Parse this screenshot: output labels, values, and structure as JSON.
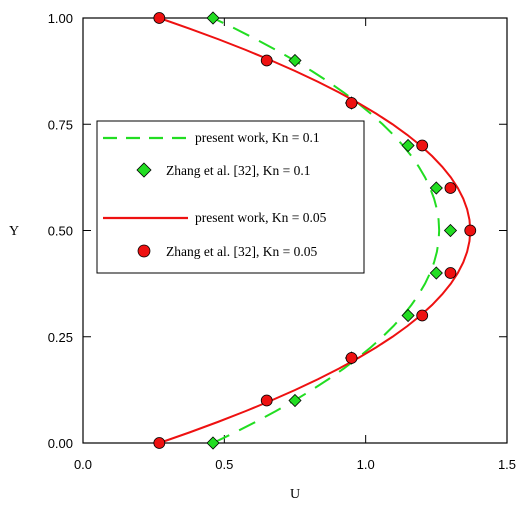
{
  "chart_data": {
    "type": "line",
    "xlabel": "U",
    "ylabel": "Y",
    "xlim": [
      0,
      1.5
    ],
    "ylim": [
      0,
      1
    ],
    "x_ticks": [
      0,
      0.5,
      1.0,
      1.5
    ],
    "x_tick_labels": [
      "0.0",
      "0.5",
      "1.0",
      "1.5"
    ],
    "y_ticks": [
      0,
      0.25,
      0.5,
      0.75,
      1.0
    ],
    "y_tick_labels": [
      "0.00",
      "0.25",
      "0.50",
      "0.75",
      "1.00"
    ],
    "grid": false,
    "legend_position": "left",
    "series": [
      {
        "name": "present work, Kn = 0.1",
        "kind": "line",
        "style": "dashed",
        "color": "#22dd22",
        "curve": {
          "slip_velocity": 0.46,
          "center_velocity": 1.26,
          "points": 41
        }
      },
      {
        "name": "Zhang et al. [32], Kn = 0.1",
        "kind": "marker",
        "marker": "diamond",
        "color": "#22dd22",
        "points": [
          {
            "x": 0.46,
            "y": 0.0
          },
          {
            "x": 0.75,
            "y": 0.1
          },
          {
            "x": 0.95,
            "y": 0.2
          },
          {
            "x": 1.15,
            "y": 0.3
          },
          {
            "x": 1.25,
            "y": 0.4
          },
          {
            "x": 1.3,
            "y": 0.5
          },
          {
            "x": 1.25,
            "y": 0.6
          },
          {
            "x": 1.15,
            "y": 0.7
          },
          {
            "x": 0.95,
            "y": 0.8
          },
          {
            "x": 0.75,
            "y": 0.9
          },
          {
            "x": 0.46,
            "y": 1.0
          }
        ]
      },
      {
        "name": "present work, Kn = 0.05",
        "kind": "line",
        "style": "solid",
        "color": "#ee1111",
        "curve": {
          "slip_velocity": 0.27,
          "center_velocity": 1.37,
          "points": 41
        }
      },
      {
        "name": "Zhang et al. [32], Kn = 0.05",
        "kind": "marker",
        "marker": "circle",
        "color": "#ee1111",
        "points": [
          {
            "x": 0.27,
            "y": 0.0
          },
          {
            "x": 0.65,
            "y": 0.1
          },
          {
            "x": 0.95,
            "y": 0.2
          },
          {
            "x": 1.2,
            "y": 0.3
          },
          {
            "x": 1.3,
            "y": 0.4
          },
          {
            "x": 1.37,
            "y": 0.5
          },
          {
            "x": 1.3,
            "y": 0.6
          },
          {
            "x": 1.2,
            "y": 0.7
          },
          {
            "x": 0.95,
            "y": 0.8
          },
          {
            "x": 0.65,
            "y": 0.9
          },
          {
            "x": 0.27,
            "y": 1.0
          }
        ]
      }
    ]
  }
}
